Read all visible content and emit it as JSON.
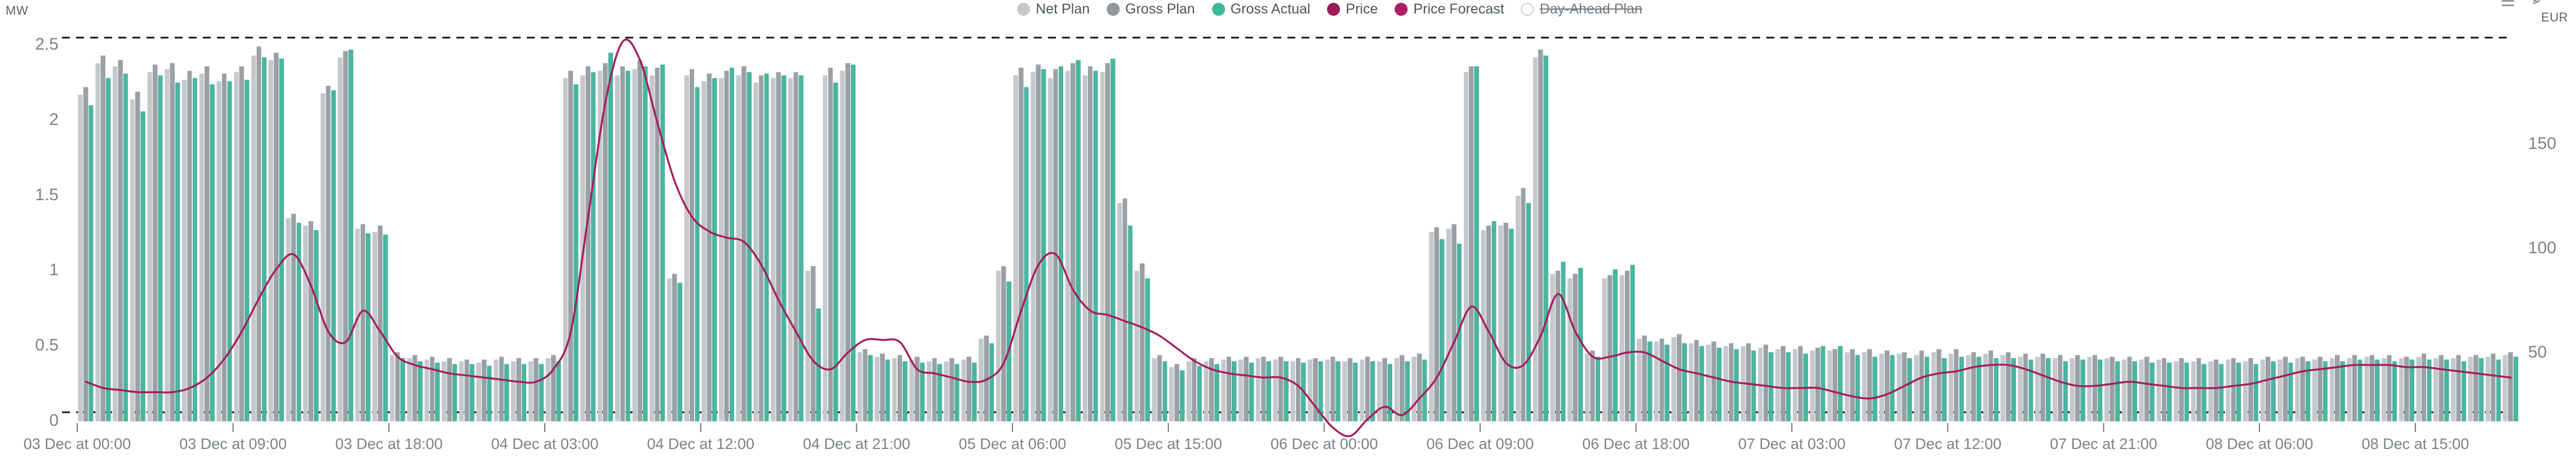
{
  "header": {
    "left_unit": "MW",
    "right_unit": "EUR"
  },
  "toolbar": {
    "icons": [
      "menu-icon",
      "edit-icon"
    ]
  },
  "legend": {
    "items": [
      {
        "label": "Net Plan",
        "color": "#c6c9cb",
        "enabled": true
      },
      {
        "label": "Gross Plan",
        "color": "#8e979c",
        "enabled": true
      },
      {
        "label": "Gross Actual",
        "color": "#3eb79c",
        "enabled": true
      },
      {
        "label": "Price",
        "color": "#9c1b59",
        "enabled": true
      },
      {
        "label": "Price Forecast",
        "color": "#ae1c62",
        "enabled": true
      },
      {
        "label": "Day-Ahead Plan",
        "color": "#ffffff",
        "enabled": false
      }
    ]
  },
  "chart_data": {
    "type": "bar+line",
    "title": "",
    "x_start_label": "03 Dec 00:00",
    "hours": 141,
    "x_tick_hours": [
      0,
      9,
      18,
      27,
      36,
      45,
      54,
      63,
      72,
      81,
      90,
      99,
      108,
      117,
      126,
      135
    ],
    "x_tick_labels": [
      "03 Dec at 00:00",
      "03 Dec at 09:00",
      "03 Dec at 18:00",
      "04 Dec at 03:00",
      "04 Dec at 12:00",
      "04 Dec at 21:00",
      "05 Dec at 06:00",
      "05 Dec at 15:00",
      "06 Dec at 00:00",
      "06 Dec at 09:00",
      "06 Dec at 18:00",
      "07 Dec at 03:00",
      "07 Dec at 12:00",
      "07 Dec at 21:00",
      "08 Dec at 06:00",
      "08 Dec at 15:00"
    ],
    "y_axis_mw": {
      "unit": "MW",
      "ticks": [
        0,
        0.5,
        1,
        1.5,
        2,
        2.5
      ],
      "range": [
        0,
        2.5
      ]
    },
    "y_axis_eur": {
      "unit": "EUR",
      "ticks": [
        50,
        100,
        150
      ],
      "range": [
        0,
        200
      ]
    },
    "limit_lines_mw": [
      2.55,
      0.06
    ],
    "grid": false,
    "legend_position": "top-center",
    "series": [
      {
        "name": "Net Plan",
        "type": "bar",
        "axis": "MW",
        "color": "#c6c9cb",
        "values": [
          2.17,
          2.38,
          2.36,
          2.14,
          2.32,
          2.34,
          2.27,
          2.31,
          2.26,
          2.32,
          2.43,
          2.4,
          1.35,
          1.3,
          2.18,
          2.42,
          1.28,
          1.26,
          0.44,
          0.42,
          0.41,
          0.4,
          0.4,
          0.39,
          0.41,
          0.4,
          0.4,
          0.42,
          2.28,
          2.3,
          2.33,
          2.3,
          2.34,
          2.3,
          0.95,
          2.3,
          2.26,
          2.28,
          2.3,
          2.25,
          2.28,
          2.28,
          1.0,
          2.3,
          2.33,
          0.46,
          0.43,
          0.42,
          0.41,
          0.4,
          0.4,
          0.41,
          0.55,
          1.0,
          2.3,
          2.32,
          2.28,
          2.33,
          2.3,
          2.32,
          1.45,
          1.0,
          0.42,
          0.36,
          0.4,
          0.4,
          0.41,
          0.41,
          0.42,
          0.41,
          0.4,
          0.41,
          0.41,
          0.4,
          0.41,
          0.4,
          0.42,
          0.43,
          1.26,
          1.28,
          2.32,
          1.27,
          1.3,
          1.5,
          2.42,
          0.98,
          0.95,
          0.45,
          0.95,
          0.97,
          0.55,
          0.53,
          0.56,
          0.52,
          0.51,
          0.5,
          0.5,
          0.49,
          0.48,
          0.48,
          0.47,
          0.47,
          0.46,
          0.46,
          0.45,
          0.45,
          0.44,
          0.46,
          0.45,
          0.44,
          0.45,
          0.44,
          0.43,
          0.43,
          0.42,
          0.42,
          0.43,
          0.42,
          0.41,
          0.41,
          0.41,
          0.4,
          0.4,
          0.4,
          0.41,
          0.4,
          0.41,
          0.41,
          0.42,
          0.41,
          0.42,
          0.42,
          0.43,
          0.42,
          0.42,
          0.43,
          0.42,
          0.42,
          0.43,
          0.43,
          0.44
        ]
      },
      {
        "name": "Gross Plan",
        "type": "bar",
        "axis": "MW",
        "color": "#9aa0a4",
        "values": [
          2.22,
          2.43,
          2.4,
          2.19,
          2.37,
          2.38,
          2.33,
          2.36,
          2.31,
          2.36,
          2.49,
          2.45,
          1.38,
          1.33,
          2.23,
          2.46,
          1.31,
          1.3,
          0.46,
          0.44,
          0.43,
          0.42,
          0.41,
          0.41,
          0.43,
          0.42,
          0.42,
          0.44,
          2.33,
          2.36,
          2.38,
          2.36,
          2.4,
          2.35,
          0.98,
          2.34,
          2.31,
          2.33,
          2.36,
          2.3,
          2.32,
          2.32,
          1.03,
          2.35,
          2.38,
          0.48,
          0.45,
          0.44,
          0.43,
          0.42,
          0.42,
          0.43,
          0.57,
          1.03,
          2.35,
          2.37,
          2.34,
          2.38,
          2.36,
          2.38,
          1.48,
          1.05,
          0.44,
          0.38,
          0.42,
          0.42,
          0.43,
          0.43,
          0.43,
          0.43,
          0.42,
          0.42,
          0.43,
          0.42,
          0.43,
          0.42,
          0.44,
          0.45,
          1.29,
          1.31,
          2.36,
          1.3,
          1.32,
          1.55,
          2.47,
          1.0,
          0.98,
          0.47,
          0.97,
          1.0,
          0.57,
          0.55,
          0.58,
          0.54,
          0.53,
          0.52,
          0.52,
          0.51,
          0.5,
          0.5,
          0.49,
          0.48,
          0.48,
          0.48,
          0.47,
          0.46,
          0.47,
          0.48,
          0.48,
          0.46,
          0.47,
          0.46,
          0.45,
          0.45,
          0.44,
          0.44,
          0.44,
          0.43,
          0.43,
          0.43,
          0.42,
          0.42,
          0.42,
          0.41,
          0.42,
          0.42,
          0.43,
          0.43,
          0.43,
          0.43,
          0.44,
          0.44,
          0.44,
          0.44,
          0.43,
          0.45,
          0.44,
          0.44,
          0.44,
          0.45,
          0.46
        ]
      },
      {
        "name": "Gross Actual",
        "type": "bar",
        "axis": "MW",
        "color": "#4ab5a0",
        "values": [
          2.1,
          2.28,
          2.31,
          2.06,
          2.3,
          2.25,
          2.28,
          2.24,
          2.26,
          2.27,
          2.42,
          2.41,
          1.32,
          1.27,
          2.2,
          2.47,
          1.25,
          1.24,
          0.42,
          0.4,
          0.39,
          0.38,
          0.38,
          0.37,
          0.38,
          0.38,
          0.38,
          0.4,
          2.24,
          2.32,
          2.45,
          2.33,
          2.36,
          2.37,
          0.92,
          2.22,
          2.28,
          2.35,
          2.32,
          2.31,
          2.3,
          2.3,
          0.75,
          2.25,
          2.37,
          0.44,
          0.41,
          0.4,
          0.39,
          0.38,
          0.38,
          0.39,
          0.52,
          0.93,
          2.22,
          2.34,
          2.36,
          2.4,
          2.33,
          2.41,
          1.3,
          0.95,
          0.4,
          0.34,
          0.37,
          0.38,
          0.4,
          0.39,
          0.4,
          0.4,
          0.39,
          0.4,
          0.4,
          0.39,
          0.4,
          0.38,
          0.4,
          0.41,
          1.21,
          1.18,
          2.36,
          1.33,
          1.28,
          1.45,
          2.43,
          1.06,
          1.02,
          0.43,
          1.01,
          1.04,
          0.53,
          0.51,
          0.52,
          0.5,
          0.49,
          0.48,
          0.47,
          0.46,
          0.46,
          0.45,
          0.5,
          0.5,
          0.44,
          0.43,
          0.44,
          0.42,
          0.43,
          0.42,
          0.43,
          0.43,
          0.42,
          0.42,
          0.41,
          0.42,
          0.4,
          0.41,
          0.41,
          0.4,
          0.4,
          0.39,
          0.39,
          0.39,
          0.38,
          0.38,
          0.39,
          0.38,
          0.4,
          0.39,
          0.4,
          0.4,
          0.4,
          0.41,
          0.41,
          0.4,
          0.41,
          0.41,
          0.41,
          0.4,
          0.42,
          0.41,
          0.43
        ]
      },
      {
        "name": "Price",
        "type": "line",
        "axis": "EUR",
        "color": "#a41d60",
        "values": [
          36,
          33,
          32,
          31,
          31,
          31,
          33,
          38,
          47,
          60,
          76,
          90,
          97,
          82,
          60,
          55,
          70,
          60,
          48,
          44,
          42,
          40,
          39,
          38,
          37,
          36,
          36,
          42,
          60,
          115,
          170,
          199,
          190,
          160,
          132,
          115,
          108,
          105,
          103,
          92,
          75,
          60,
          46,
          42,
          50,
          56,
          56,
          55,
          42,
          40,
          38,
          36,
          37,
          45,
          70,
          92,
          97,
          80,
          70,
          68,
          65,
          62,
          58,
          52,
          46,
          42,
          40,
          39,
          38,
          38,
          34,
          24,
          14,
          10,
          18,
          24,
          20,
          28,
          38,
          55,
          72,
          60,
          45,
          44,
          58,
          78,
          60,
          48,
          48,
          50,
          50,
          46,
          42,
          40,
          38,
          36,
          35,
          34,
          33,
          33,
          33,
          31,
          29,
          28,
          30,
          34,
          38,
          40,
          41,
          43,
          44,
          44,
          42,
          39,
          36,
          34,
          34,
          35,
          36,
          35,
          34,
          33,
          33,
          33,
          34,
          35,
          37,
          39,
          41,
          42,
          43,
          44,
          44,
          44,
          43,
          43,
          42,
          41,
          40,
          39,
          38
        ]
      }
    ]
  }
}
